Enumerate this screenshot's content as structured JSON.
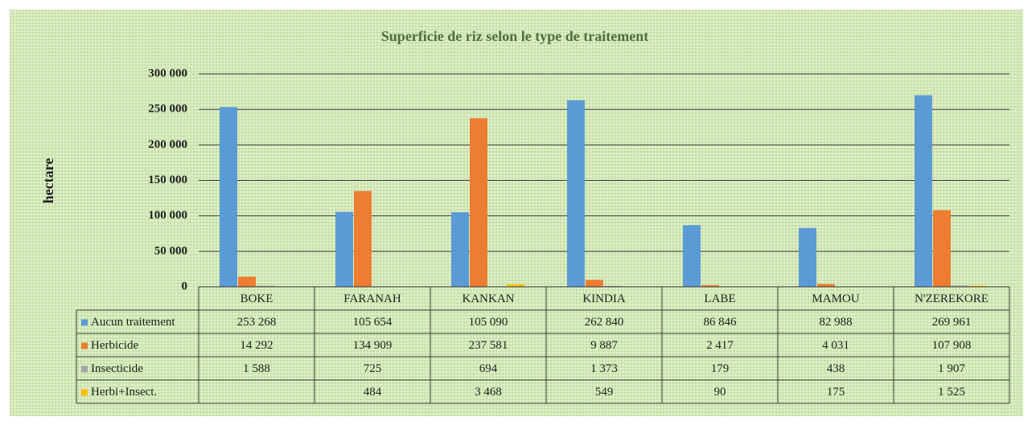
{
  "chart_data": {
    "type": "bar",
    "title": "Superficie de riz selon le type de traitement",
    "y_label": "hectare",
    "categories": [
      "BOKE",
      "FARANAH",
      "KANKAN",
      "KINDIA",
      "LABE",
      "MAMOU",
      "N'ZEREKORE"
    ],
    "series": [
      {
        "name": "Aucun traitement",
        "color": "#5b9bd5",
        "values": [
          253268,
          105654,
          105090,
          262840,
          86846,
          82988,
          269961
        ],
        "value_labels": [
          "253 268",
          "105 654",
          "105 090",
          "262 840",
          "86 846",
          "82 988",
          "269 961"
        ]
      },
      {
        "name": "Herbicide",
        "color": "#ed7d31",
        "values": [
          14292,
          134909,
          237581,
          9887,
          2417,
          4031,
          107908
        ],
        "value_labels": [
          "14 292",
          "134 909",
          "237 581",
          "9 887",
          "2 417",
          "4 031",
          "107 908"
        ]
      },
      {
        "name": "Insecticide",
        "color": "#a5a5a5",
        "values": [
          1588,
          725,
          694,
          1373,
          179,
          438,
          1907
        ],
        "value_labels": [
          "1 588",
          "725",
          "694",
          "1 373",
          "179",
          "438",
          "1 907"
        ]
      },
      {
        "name": "Herbi+Insect.",
        "color": "#ffc000",
        "values": [
          null,
          484,
          3468,
          549,
          90,
          175,
          1525
        ],
        "value_labels": [
          null,
          "484",
          "3 468",
          "549",
          "90",
          "175",
          "1 525"
        ]
      }
    ],
    "ylim": [
      0,
      300000
    ],
    "yticks": [
      0,
      {
        "value": 50000,
        "label": "50 000"
      },
      {
        "value": 100000,
        "label": "100 000"
      },
      {
        "value": 150000,
        "label": "150 000"
      },
      {
        "value": 200000,
        "label": "200 000"
      },
      {
        "value": 250000,
        "label": "250 000"
      },
      {
        "value": 300000,
        "label": "300 000"
      }
    ],
    "grid": true,
    "legend": "data-table"
  }
}
